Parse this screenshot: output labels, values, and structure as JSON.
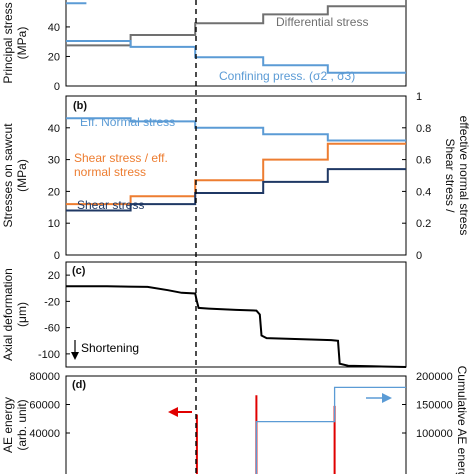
{
  "chart_data": [
    {
      "panel_label": "",
      "type": "line",
      "ylabel": "Principal stress (MPa)",
      "ylim": [
        0,
        65
      ],
      "y_ticks": [
        0,
        20,
        40
      ],
      "series": [
        {
          "name": "Differential stress",
          "color": "#707070",
          "points": [
            [
              0,
              27.5
            ],
            [
              0.19,
              27.5
            ],
            [
              0.19,
              34.5
            ],
            [
              0.38,
              34.5
            ],
            [
              0.38,
              42.5
            ],
            [
              0.58,
              42.5
            ],
            [
              0.58,
              48.5
            ],
            [
              0.77,
              48.5
            ],
            [
              0.77,
              54
            ],
            [
              1,
              54
            ]
          ]
        },
        {
          "name": "Confining press.",
          "color": "#5b9bd5",
          "points": [
            [
              0,
              30.5
            ],
            [
              0.19,
              30.5
            ],
            [
              0.19,
              26.5
            ],
            [
              0.38,
              26.5
            ],
            [
              0.38,
              19.5
            ],
            [
              0.58,
              19.5
            ],
            [
              0.58,
              14
            ],
            [
              0.77,
              14
            ],
            [
              0.77,
              9
            ],
            [
              1,
              9
            ]
          ]
        },
        {
          "name": "",
          "color": "#5b9bd5",
          "points": [
            [
              0,
              56
            ],
            [
              0.06,
              56
            ]
          ]
        }
      ],
      "annotations": [
        {
          "text": "Differential stress",
          "color": "#707070"
        },
        {
          "text": "Confining  press. (σ2 , σ3)",
          "color": "#5b9bd5"
        }
      ]
    },
    {
      "panel_label": "(b)",
      "type": "line",
      "ylabel": "Stresses on sawcut (MPa)",
      "ylim": [
        0,
        50
      ],
      "y_ticks": [
        0,
        10,
        20,
        30,
        40
      ],
      "ylabel_right": "Shear stress / effective normal stress",
      "ylim_right": [
        0,
        1
      ],
      "y_ticks_right": [
        0,
        0.2,
        0.4,
        0.6,
        0.8,
        1
      ],
      "series": [
        {
          "name": "Eff. Normal stress",
          "axis": "left",
          "color": "#5b9bd5",
          "points": [
            [
              0,
              43
            ],
            [
              0.19,
              43
            ],
            [
              0.19,
              42
            ],
            [
              0.38,
              42
            ],
            [
              0.38,
              40
            ],
            [
              0.58,
              40
            ],
            [
              0.58,
              38
            ],
            [
              0.77,
              38
            ],
            [
              0.77,
              36
            ],
            [
              1,
              36
            ]
          ]
        },
        {
          "name": "Shear stress / eff. normal stress",
          "axis": "right",
          "color": "#ed7d31",
          "points": [
            [
              0,
              0.32
            ],
            [
              0.19,
              0.32
            ],
            [
              0.19,
              0.37
            ],
            [
              0.38,
              0.37
            ],
            [
              0.38,
              0.47
            ],
            [
              0.58,
              0.47
            ],
            [
              0.58,
              0.6
            ],
            [
              0.77,
              0.6
            ],
            [
              0.77,
              0.7
            ],
            [
              1,
              0.7
            ]
          ]
        },
        {
          "name": "Shear stress",
          "axis": "left",
          "color": "#1f3864",
          "points": [
            [
              0,
              14
            ],
            [
              0.19,
              14
            ],
            [
              0.19,
              16
            ],
            [
              0.38,
              16
            ],
            [
              0.38,
              19.5
            ],
            [
              0.58,
              19.5
            ],
            [
              0.58,
              23
            ],
            [
              0.77,
              23
            ],
            [
              0.77,
              27
            ],
            [
              1,
              27
            ]
          ]
        }
      ],
      "annotations": [
        {
          "text": "Eff. Normal stress",
          "color": "#5b9bd5"
        },
        {
          "text": "Shear stress / eff.",
          "color": "#ed7d31"
        },
        {
          "text": "normal stress",
          "color": "#ed7d31"
        },
        {
          "text": "Shear stress",
          "color": "#1f3864"
        }
      ]
    },
    {
      "panel_label": "(c)",
      "type": "line",
      "ylabel": "Axial deformation (μm)",
      "ylim": [
        -120,
        40
      ],
      "y_ticks": [
        -100,
        -60,
        -20,
        20
      ],
      "series": [
        {
          "name": "",
          "color": "#000000",
          "points": [
            [
              0,
              3
            ],
            [
              0.12,
              3
            ],
            [
              0.24,
              2
            ],
            [
              0.3,
              -3
            ],
            [
              0.34,
              -7
            ],
            [
              0.38,
              -8
            ],
            [
              0.385,
              -20
            ],
            [
              0.39,
              -30
            ],
            [
              0.42,
              -31
            ],
            [
              0.5,
              -33
            ],
            [
              0.56,
              -34
            ],
            [
              0.57,
              -40
            ],
            [
              0.575,
              -72
            ],
            [
              0.59,
              -76
            ],
            [
              0.65,
              -77
            ],
            [
              0.78,
              -79
            ],
            [
              0.8,
              -80
            ],
            [
              0.805,
              -115
            ],
            [
              0.83,
              -118
            ],
            [
              0.9,
              -119
            ],
            [
              1,
              -120
            ]
          ]
        }
      ],
      "annotations": [
        {
          "text": "Shortening",
          "color": "#000000"
        }
      ]
    },
    {
      "panel_label": "(d)",
      "type": "line",
      "ylabel": "AE energy (arb. unit)",
      "ylim": [
        0,
        80000
      ],
      "y_ticks": [
        40000,
        60000,
        80000
      ],
      "ylabel_right": "Cumulative AE energy",
      "ylim_right": [
        0,
        200000
      ],
      "y_ticks_right": [
        100000,
        150000,
        200000
      ],
      "series": [
        {
          "name": "AE energy",
          "axis": "left",
          "color": "#e00000",
          "type": "spikes",
          "points": [
            [
              0.385,
              53000
            ],
            [
              0.56,
              66500
            ],
            [
              0.79,
              59000
            ]
          ]
        },
        {
          "name": "Cumulative AE energy",
          "axis": "right",
          "color": "#5b9bd5",
          "points": [
            [
              0.385,
              0
            ],
            [
              0.56,
              0
            ],
            [
              0.56,
              120000
            ],
            [
              0.79,
              120000
            ],
            [
              0.79,
              180000
            ],
            [
              1,
              180000
            ]
          ]
        }
      ],
      "annotations": []
    }
  ]
}
